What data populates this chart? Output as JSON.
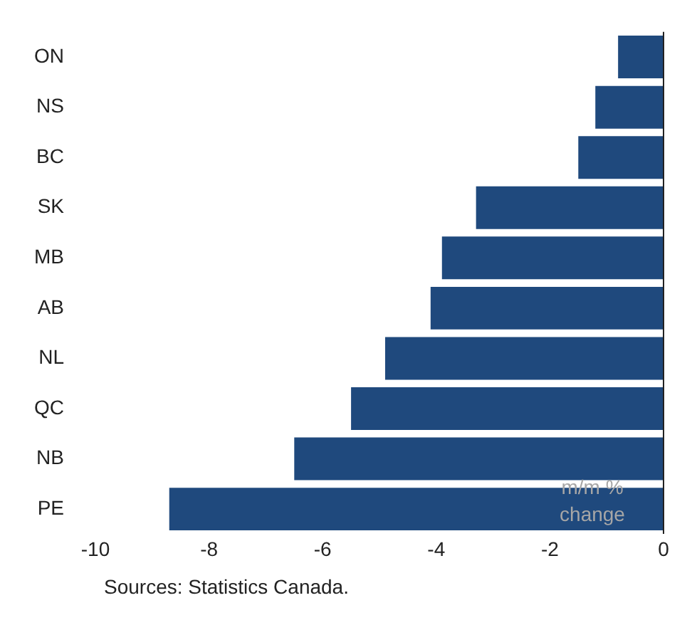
{
  "chart_data": {
    "type": "bar",
    "orientation": "horizontal",
    "categories": [
      "ON",
      "NS",
      "BC",
      "SK",
      "MB",
      "AB",
      "NL",
      "QC",
      "NB",
      "PE"
    ],
    "values": [
      -0.8,
      -1.2,
      -1.5,
      -3.3,
      -3.9,
      -4.1,
      -4.9,
      -5.5,
      -6.5,
      -8.7
    ],
    "color": "#1f497d",
    "xlim": [
      -10,
      0
    ],
    "xticks": [
      -10,
      -8,
      -6,
      -4,
      -2,
      0
    ],
    "grid": false,
    "legend": false,
    "annotations": [
      "m/m % change",
      "Sources: Statistics Canada."
    ]
  }
}
